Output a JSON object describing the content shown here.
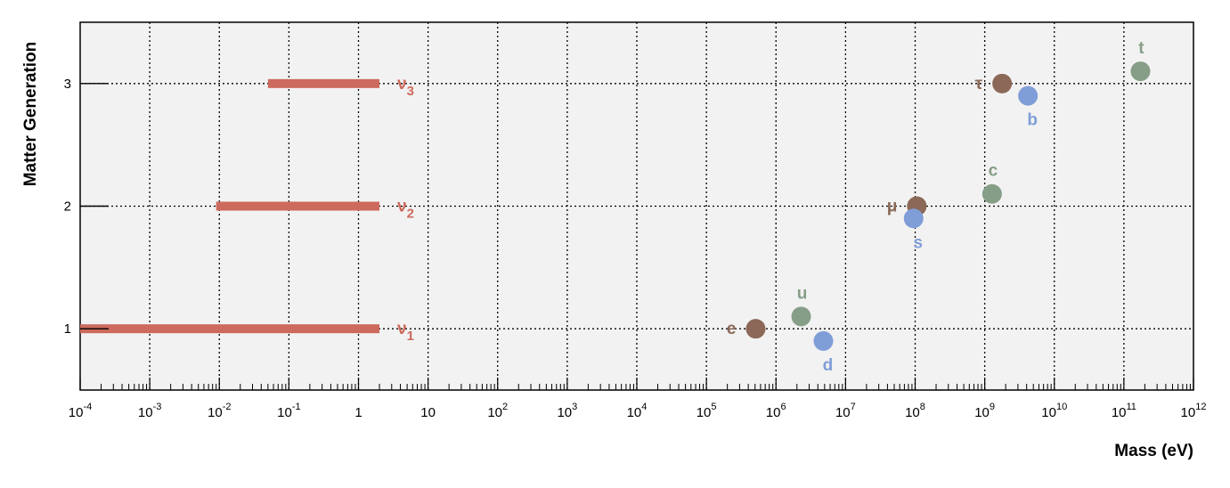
{
  "chart_data": {
    "type": "scatter",
    "xlabel": "Mass (eV)",
    "ylabel": "Matter Generation",
    "x_scale": "log",
    "xlim": [
      0.0001,
      1000000000000.0
    ],
    "ylim": [
      0.5,
      3.5
    ],
    "grid": true,
    "colors": {
      "lepton": "#8b6857",
      "up_quark": "#869e87",
      "down_quark": "#7f9ed8",
      "neutrino": "#cd6a5d"
    },
    "x_tick_labels": [
      {
        "base": "10",
        "exp": "-4"
      },
      {
        "base": "10",
        "exp": "-3"
      },
      {
        "base": "10",
        "exp": "-2"
      },
      {
        "base": "10",
        "exp": "-1"
      },
      {
        "base": "1",
        "exp": ""
      },
      {
        "base": "10",
        "exp": ""
      },
      {
        "base": "10",
        "exp": "2"
      },
      {
        "base": "10",
        "exp": "3"
      },
      {
        "base": "10",
        "exp": "4"
      },
      {
        "base": "10",
        "exp": "5"
      },
      {
        "base": "10",
        "exp": "6"
      },
      {
        "base": "10",
        "exp": "7"
      },
      {
        "base": "10",
        "exp": "8"
      },
      {
        "base": "10",
        "exp": "9"
      },
      {
        "base": "10",
        "exp": "10"
      },
      {
        "base": "10",
        "exp": "11"
      },
      {
        "base": "10",
        "exp": "12"
      }
    ],
    "y_tick_labels": [
      "1",
      "2",
      "3"
    ],
    "y_ticks": [
      1,
      2,
      3
    ],
    "neutrino_bars": [
      {
        "label": "ν",
        "sub": "1",
        "x_min": 0.0001,
        "x_max": 2,
        "y": 1
      },
      {
        "label": "ν",
        "sub": "2",
        "x_min": 0.009,
        "x_max": 2,
        "y": 2
      },
      {
        "label": "ν",
        "sub": "3",
        "x_min": 0.05,
        "x_max": 2,
        "y": 3
      }
    ],
    "points": [
      {
        "label": "e",
        "x": 511000,
        "y": 1,
        "group": "lepton",
        "label_pos": "left"
      },
      {
        "label": "μ",
        "x": 105700000,
        "y": 2,
        "group": "lepton",
        "label_pos": "left"
      },
      {
        "label": "τ",
        "x": 1777000000,
        "y": 3,
        "group": "lepton",
        "label_pos": "left"
      },
      {
        "label": "u",
        "x": 2300000,
        "y": 1.1,
        "group": "up_quark",
        "label_pos": "above"
      },
      {
        "label": "c",
        "x": 1275000000,
        "y": 2.1,
        "group": "up_quark",
        "label_pos": "above"
      },
      {
        "label": "t",
        "x": 173000000000,
        "y": 3.1,
        "group": "up_quark",
        "label_pos": "above"
      },
      {
        "label": "d",
        "x": 4800000,
        "y": 0.9,
        "group": "down_quark",
        "label_pos": "below"
      },
      {
        "label": "s",
        "x": 95000000,
        "y": 1.9,
        "group": "down_quark",
        "label_pos": "below"
      },
      {
        "label": "b",
        "x": 4180000000,
        "y": 2.9,
        "group": "down_quark",
        "label_pos": "below"
      }
    ]
  }
}
